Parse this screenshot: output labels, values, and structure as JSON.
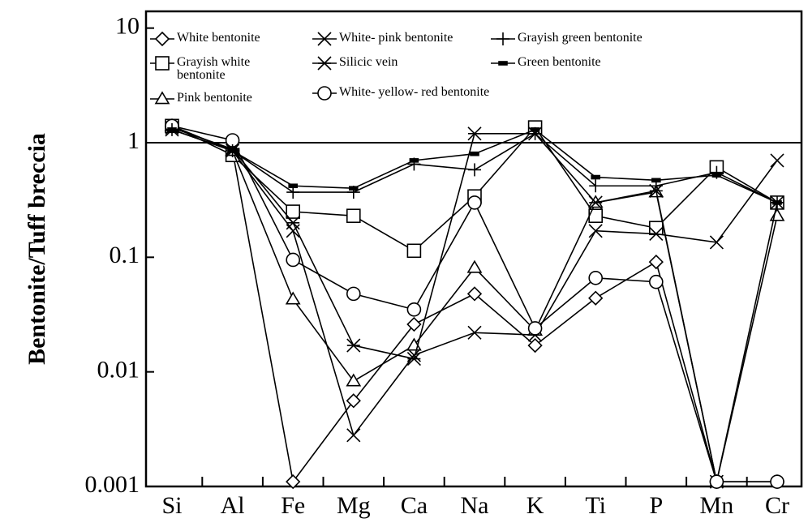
{
  "chart_data": {
    "type": "line",
    "y_label": "Bentonite/Tuff breccia",
    "log_scale": true,
    "legend": "upper left",
    "categories": [
      "Si",
      "Al",
      "Fe",
      "Mg",
      "Ca",
      "Na",
      "K",
      "Ti",
      "P",
      "Mn",
      "Cr"
    ],
    "ylim": [
      0.001,
      14
    ],
    "yticks": [
      0.001,
      0.01,
      0.1,
      1,
      10
    ],
    "reference_line": 1,
    "series": [
      {
        "name": "White bentonite",
        "marker": "diamond",
        "color": "#000000",
        "values": [
          1.4,
          0.85,
          0.0011,
          0.0056,
          0.026,
          0.048,
          0.017,
          0.044,
          0.091,
          0.0011,
          0.0011
        ]
      },
      {
        "name": "Grayish white bentonite",
        "marker": "square",
        "color": "#000000",
        "values": [
          1.4,
          0.78,
          0.25,
          0.23,
          0.114,
          0.34,
          1.36,
          0.23,
          0.18,
          0.61,
          0.3
        ]
      },
      {
        "name": "Pink bentonite",
        "marker": "triangle",
        "color": "#000000",
        "values": [
          1.4,
          0.85,
          0.043,
          0.0083,
          0.017,
          0.081,
          0.023,
          0.3,
          0.37,
          0.0011,
          0.23
        ]
      },
      {
        "name": "White- pink bentonite",
        "marker": "x",
        "color": "#000000",
        "values": [
          1.3,
          0.85,
          0.17,
          0.0028,
          0.014,
          0.022,
          0.021,
          0.17,
          0.16,
          0.135,
          0.7
        ]
      },
      {
        "name": "Silicic vein",
        "marker": "asterisk",
        "color": "#000000",
        "values": [
          1.35,
          0.88,
          0.2,
          0.017,
          0.013,
          1.2,
          1.2,
          0.3,
          0.38,
          0.0011,
          0.3
        ]
      },
      {
        "name": "White- yellow- red bentonite",
        "marker": "circle",
        "color": "#000000",
        "values": [
          1.4,
          1.05,
          0.095,
          0.048,
          0.035,
          0.3,
          0.024,
          0.066,
          0.061,
          0.0011,
          0.0011
        ]
      },
      {
        "name": "Grayish green bentonite",
        "marker": "plus",
        "color": "#000000",
        "values": [
          1.3,
          0.85,
          0.37,
          0.37,
          0.65,
          0.58,
          1.2,
          0.42,
          0.42,
          0.55,
          0.3
        ]
      },
      {
        "name": "Green bentonite",
        "marker": "dash",
        "color": "#000000",
        "values": [
          1.3,
          0.85,
          0.42,
          0.4,
          0.7,
          0.8,
          1.3,
          0.5,
          0.47,
          0.52,
          0.3
        ]
      }
    ]
  }
}
